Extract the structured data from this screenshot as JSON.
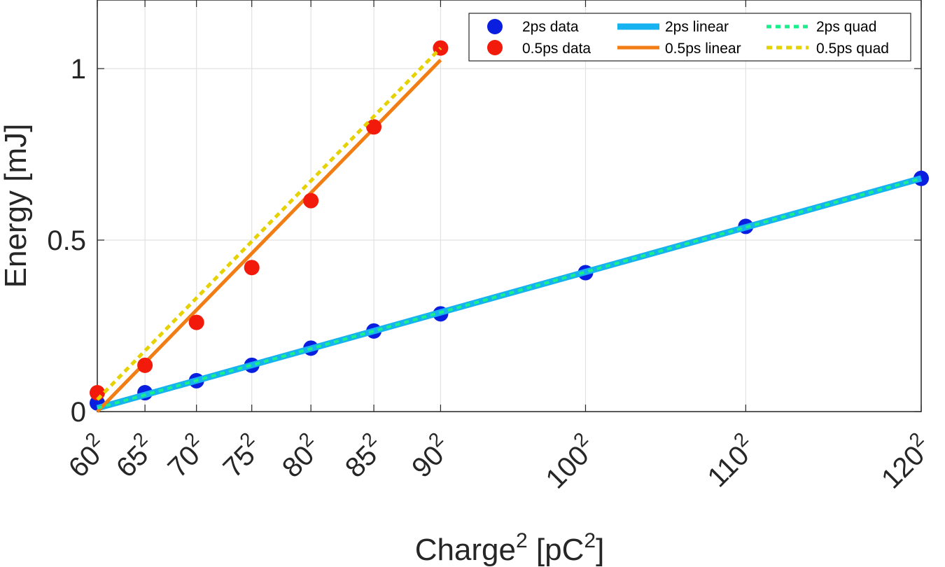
{
  "chart_data": {
    "type": "line",
    "title": "",
    "xlabel": "Charge",
    "xlabel_superscript": "2",
    "xlabel_unit_open": " [pC",
    "xlabel_unit_superscript": "2",
    "xlabel_unit_close": "]",
    "ylabel": "Energy [mJ]",
    "xlim": [
      3600,
      14400
    ],
    "ylim": [
      0,
      1.2
    ],
    "grid": true,
    "legend_position": "top-right",
    "x_ticks": [
      {
        "value": 3600,
        "base": "60",
        "exp": "2"
      },
      {
        "value": 4225,
        "base": "65",
        "exp": "2"
      },
      {
        "value": 4900,
        "base": "70",
        "exp": "2"
      },
      {
        "value": 5625,
        "base": "75",
        "exp": "2"
      },
      {
        "value": 6400,
        "base": "80",
        "exp": "2"
      },
      {
        "value": 7225,
        "base": "85",
        "exp": "2"
      },
      {
        "value": 8100,
        "base": "90",
        "exp": "2"
      },
      {
        "value": 10000,
        "base": "100",
        "exp": "2"
      },
      {
        "value": 12100,
        "base": "110",
        "exp": "2"
      },
      {
        "value": 14400,
        "base": "120",
        "exp": "2"
      }
    ],
    "y_ticks": [
      {
        "value": 0,
        "label": "0"
      },
      {
        "value": 0.5,
        "label": "0.5"
      },
      {
        "value": 1,
        "label": "1"
      }
    ],
    "series": [
      {
        "name": "2ps data",
        "kind": "scatter",
        "color": "#0a1ee0",
        "x": [
          3600,
          4225,
          4900,
          5625,
          6400,
          7225,
          8100,
          10000,
          12100,
          14400
        ],
        "y": [
          0.025,
          0.055,
          0.09,
          0.135,
          0.185,
          0.235,
          0.285,
          0.405,
          0.54,
          0.68
        ]
      },
      {
        "name": "0.5ps data",
        "kind": "scatter",
        "color": "#f21a0a",
        "x": [
          3600,
          4225,
          4900,
          5625,
          6400,
          7225,
          8100
        ],
        "y": [
          0.055,
          0.135,
          0.26,
          0.42,
          0.615,
          0.83,
          1.06
        ]
      },
      {
        "name": "2ps linear",
        "kind": "line",
        "color": "#16b3f0",
        "width": 9,
        "dash": "",
        "x": [
          3600,
          14400
        ],
        "y": [
          0.01,
          0.68
        ]
      },
      {
        "name": "0.5ps linear",
        "kind": "line",
        "color": "#f27d14",
        "width": 5,
        "dash": "",
        "x": [
          3600,
          8100
        ],
        "y": [
          0.0,
          1.025
        ]
      },
      {
        "name": "2ps quad",
        "kind": "line",
        "color": "#19f08c",
        "width": 4,
        "dash": "7 6",
        "x": [
          3600,
          14400
        ],
        "y": [
          0.01,
          0.68
        ]
      },
      {
        "name": "0.5ps quad",
        "kind": "line",
        "color": "#e6d200",
        "width": 5,
        "dash": "8 6",
        "x": [
          3600,
          8100
        ],
        "y": [
          0.035,
          1.06
        ]
      }
    ]
  },
  "legend": {
    "col1": [
      "2ps data",
      "0.5ps data"
    ],
    "col2": [
      "2ps linear",
      "0.5ps linear"
    ],
    "col3": [
      "2ps quad",
      "0.5ps quad"
    ]
  }
}
